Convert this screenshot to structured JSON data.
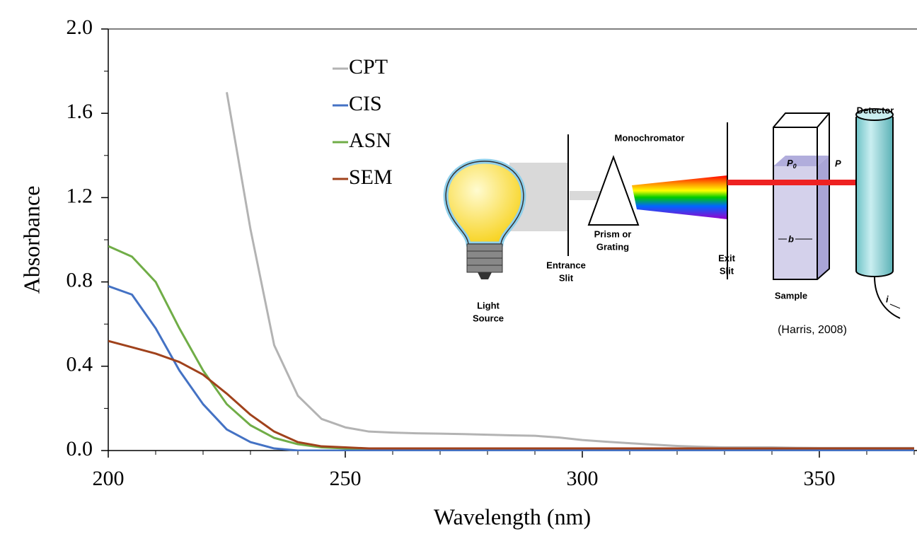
{
  "chart_data": {
    "type": "line",
    "xlabel": "Wavelength (nm)",
    "ylabel": "Absorbance",
    "xlim": [
      200,
      370.6
    ],
    "ylim": [
      0,
      2.0
    ],
    "xticks": [
      200,
      250,
      300,
      350
    ],
    "xminorticks": [
      210,
      220,
      230,
      240,
      260,
      270,
      280,
      290,
      310,
      320,
      330,
      340,
      360,
      370
    ],
    "yticks": [
      {
        "value": 0,
        "label": "0.0"
      },
      {
        "value": 0.4,
        "label": "0.4"
      },
      {
        "value": 0.8,
        "label": "0.8"
      },
      {
        "value": 1.2,
        "label": "1.2"
      },
      {
        "value": 1.6,
        "label": "1.6"
      },
      {
        "value": 2.0,
        "label": "2.0"
      }
    ],
    "yminorticks": [
      0.2,
      0.6,
      1.0,
      1.4,
      1.8
    ],
    "x": [
      200,
      205,
      210,
      215,
      220,
      225,
      230,
      235,
      240,
      245,
      250,
      255,
      260,
      265,
      270,
      275,
      280,
      285,
      290,
      295,
      300,
      305,
      310,
      315,
      320,
      325,
      330,
      335,
      340,
      345,
      350,
      355,
      360,
      365,
      370
    ],
    "series": [
      {
        "name": "CPT",
        "color": "#b3b3b3",
        "values": [
          null,
          null,
          null,
          null,
          null,
          1.7,
          1.05,
          0.5,
          0.26,
          0.15,
          0.11,
          0.09,
          0.085,
          0.082,
          0.08,
          0.078,
          0.075,
          0.072,
          0.07,
          0.062,
          0.05,
          0.042,
          0.035,
          0.028,
          0.022,
          0.018,
          0.015,
          0.015,
          0.015,
          0.013,
          0.012,
          0.012,
          0.012,
          0.012,
          0.012
        ]
      },
      {
        "name": "CIS",
        "color": "#4472c4",
        "values": [
          0.78,
          0.74,
          0.58,
          0.38,
          0.22,
          0.1,
          0.04,
          0.01,
          0,
          0,
          0,
          0,
          0,
          0,
          0,
          0,
          0,
          0,
          0,
          0,
          0,
          0,
          0,
          0,
          0,
          0,
          0,
          0,
          0,
          0,
          0,
          0,
          0,
          0,
          0
        ]
      },
      {
        "name": "ASN",
        "color": "#70ad47",
        "values": [
          0.97,
          0.92,
          0.8,
          0.58,
          0.38,
          0.22,
          0.12,
          0.06,
          0.03,
          0.015,
          0.01,
          0.01,
          0.01,
          0.01,
          0.01,
          0.01,
          0.01,
          0.01,
          0.01,
          0.01,
          0.01,
          0.01,
          0.01,
          0.01,
          0.01,
          0.01,
          0.01,
          0.01,
          0.01,
          0.01,
          0.01,
          0.01,
          0.01,
          0.01,
          0.01
        ]
      },
      {
        "name": "SEM",
        "color": "#a0421c",
        "values": [
          0.52,
          0.49,
          0.46,
          0.42,
          0.36,
          0.27,
          0.17,
          0.09,
          0.04,
          0.02,
          0.015,
          0.01,
          0.01,
          0.01,
          0.01,
          0.01,
          0.01,
          0.01,
          0.01,
          0.01,
          0.01,
          0.01,
          0.01,
          0.01,
          0.01,
          0.01,
          0.01,
          0.01,
          0.01,
          0.01,
          0.01,
          0.01,
          0.01,
          0.01,
          0.01
        ]
      }
    ]
  },
  "inset": {
    "monochromator": "Monochromator",
    "detector": "Detector",
    "p0": {
      "label": "P",
      "sub": "0"
    },
    "p": "P",
    "prism": [
      "Prism or",
      "Grating"
    ],
    "entrance": [
      "Entrance",
      "Slit"
    ],
    "exit": [
      "Exit",
      "Slit"
    ],
    "sample": "Sample",
    "b": "b",
    "source": [
      "Light",
      "Source"
    ],
    "i": "i",
    "citation": "(Harris, 2008)"
  }
}
